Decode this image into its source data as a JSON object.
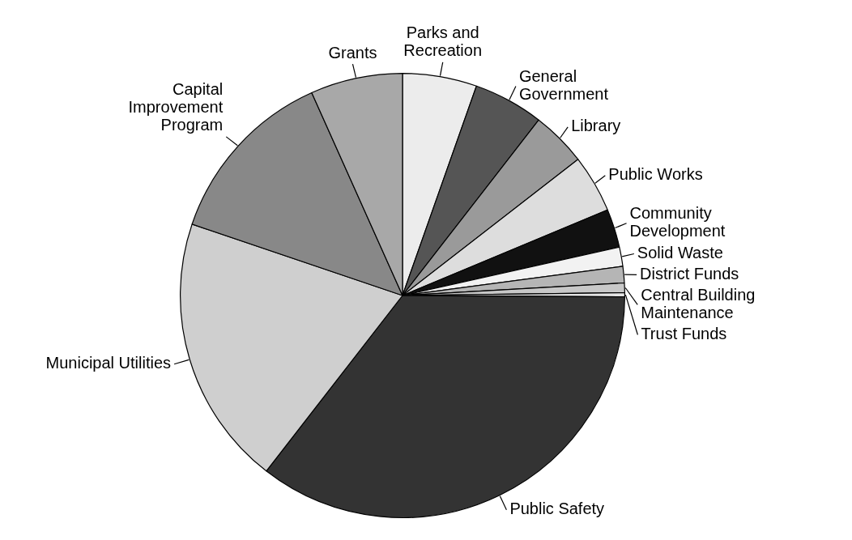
{
  "chart_data": {
    "type": "pie",
    "categories": [
      "Parks and\nRecreation",
      "General\nGovernment",
      "Library",
      "Public Works",
      "Community\nDevelopment",
      "Solid Waste",
      "District Funds",
      "Central Building\nMaintenance",
      "Trust Funds",
      "Public Safety",
      "Municipal Utilities",
      "Capital\nImprovement\nProgram",
      "Grants"
    ],
    "values": [
      5.4,
      5.1,
      4.0,
      4.2,
      2.8,
      1.4,
      1.2,
      0.7,
      0.3,
      35.4,
      19.7,
      13.1,
      6.7
    ],
    "colors": [
      "#ececec",
      "#555555",
      "#9a9a9a",
      "#dddddd",
      "#111111",
      "#f2f2f2",
      "#b5b5b5",
      "#c8c8c8",
      "#e4e4e4",
      "#333333",
      "#cfcfcf",
      "#888888",
      "#a8a8a8"
    ]
  }
}
